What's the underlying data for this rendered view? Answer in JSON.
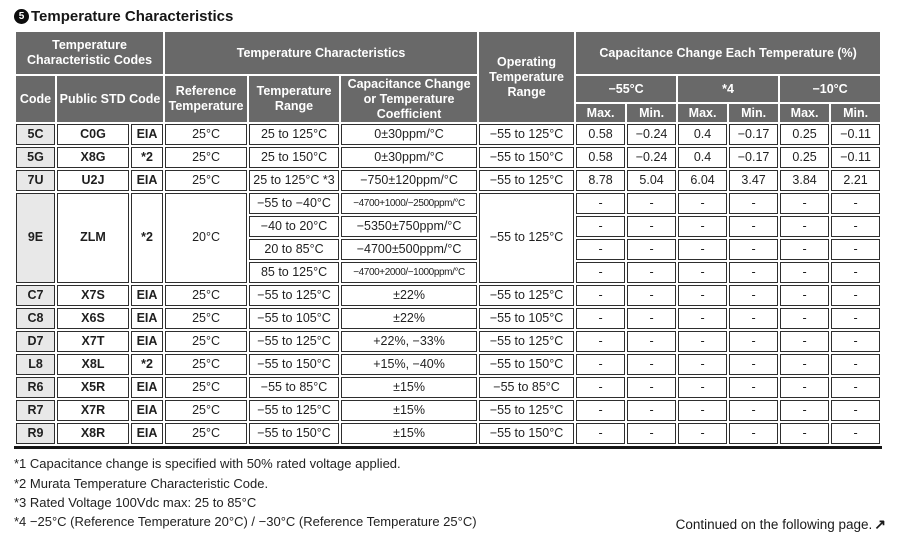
{
  "title": {
    "badge": "5",
    "text": "Temperature Characteristics"
  },
  "table": {
    "headers": {
      "temp_char_codes": "Temperature Characteristic Codes",
      "temp_characteristics": "Temperature Characteristics",
      "operating_temp_range": "Operating Temperature Range",
      "cap_change_each_temp": "Capacitance Change Each Temperature (%)",
      "code": "Code",
      "public_std_code": "Public STD Code",
      "reference_temperature": "Reference Temperature",
      "temperature_range": "Temperature Range",
      "cap_change_or_coeff": "Capacitance Change or Temperature Coefficient",
      "col_minus55": "−55°C",
      "col_star4": "*4",
      "col_minus10": "−10°C",
      "max": "Max.",
      "min": "Min."
    },
    "groups": [
      {
        "code": "5C",
        "std": "C0G",
        "org": "EIA",
        "ref": "25°C",
        "op": "−55 to 125°C",
        "subs": [
          {
            "range": "25 to 125°C",
            "coeff": "0±30ppm/°C",
            "vals": [
              "0.58",
              "−0.24",
              "0.4",
              "−0.17",
              "0.25",
              "−0.11"
            ]
          }
        ]
      },
      {
        "code": "5G",
        "std": "X8G",
        "org": "*2",
        "ref": "25°C",
        "op": "−55 to 150°C",
        "subs": [
          {
            "range": "25 to 150°C",
            "coeff": "0±30ppm/°C",
            "vals": [
              "0.58",
              "−0.24",
              "0.4",
              "−0.17",
              "0.25",
              "−0.11"
            ]
          }
        ]
      },
      {
        "code": "7U",
        "std": "U2J",
        "org": "EIA",
        "ref": "25°C",
        "op": "−55 to 125°C",
        "subs": [
          {
            "range": "25 to 125°C *3",
            "coeff": "−750±120ppm/°C",
            "vals": [
              "8.78",
              "5.04",
              "6.04",
              "3.47",
              "3.84",
              "2.21"
            ]
          }
        ]
      },
      {
        "code": "9E",
        "std": "ZLM",
        "org": "*2",
        "ref": "20°C",
        "op": "−55 to 125°C",
        "subs": [
          {
            "range": "−55 to −40°C",
            "coeff": "−4700+1000/−2500ppm/°C",
            "condensed": true,
            "vals": [
              "-",
              "-",
              "-",
              "-",
              "-",
              "-"
            ]
          },
          {
            "range": "−40 to 20°C",
            "coeff": "−5350±750ppm/°C",
            "vals": [
              "-",
              "-",
              "-",
              "-",
              "-",
              "-"
            ]
          },
          {
            "range": "20 to 85°C",
            "coeff": "−4700±500ppm/°C",
            "vals": [
              "-",
              "-",
              "-",
              "-",
              "-",
              "-"
            ]
          },
          {
            "range": "85 to 125°C",
            "coeff": "−4700+2000/−1000ppm/°C",
            "condensed": true,
            "vals": [
              "-",
              "-",
              "-",
              "-",
              "-",
              "-"
            ]
          }
        ]
      },
      {
        "code": "C7",
        "std": "X7S",
        "org": "EIA",
        "ref": "25°C",
        "op": "−55 to 125°C",
        "subs": [
          {
            "range": "−55 to 125°C",
            "coeff": "±22%",
            "vals": [
              "-",
              "-",
              "-",
              "-",
              "-",
              "-"
            ]
          }
        ]
      },
      {
        "code": "C8",
        "std": "X6S",
        "org": "EIA",
        "ref": "25°C",
        "op": "−55 to 105°C",
        "subs": [
          {
            "range": "−55 to 105°C",
            "coeff": "±22%",
            "vals": [
              "-",
              "-",
              "-",
              "-",
              "-",
              "-"
            ]
          }
        ]
      },
      {
        "code": "D7",
        "std": "X7T",
        "org": "EIA",
        "ref": "25°C",
        "op": "−55 to 125°C",
        "subs": [
          {
            "range": "−55 to 125°C",
            "coeff": "+22%, −33%",
            "vals": [
              "-",
              "-",
              "-",
              "-",
              "-",
              "-"
            ]
          }
        ]
      },
      {
        "code": "L8",
        "std": "X8L",
        "org": "*2",
        "ref": "25°C",
        "op": "−55 to 150°C",
        "subs": [
          {
            "range": "−55 to 150°C",
            "coeff": "+15%, −40%",
            "vals": [
              "-",
              "-",
              "-",
              "-",
              "-",
              "-"
            ]
          }
        ]
      },
      {
        "code": "R6",
        "std": "X5R",
        "org": "EIA",
        "ref": "25°C",
        "op": "−55 to 85°C",
        "subs": [
          {
            "range": "−55 to 85°C",
            "coeff": "±15%",
            "vals": [
              "-",
              "-",
              "-",
              "-",
              "-",
              "-"
            ]
          }
        ]
      },
      {
        "code": "R7",
        "std": "X7R",
        "org": "EIA",
        "ref": "25°C",
        "op": "−55 to 125°C",
        "subs": [
          {
            "range": "−55 to 125°C",
            "coeff": "±15%",
            "vals": [
              "-",
              "-",
              "-",
              "-",
              "-",
              "-"
            ]
          }
        ]
      },
      {
        "code": "R9",
        "std": "X8R",
        "org": "EIA",
        "ref": "25°C",
        "op": "−55 to 150°C",
        "subs": [
          {
            "range": "−55 to 150°C",
            "coeff": "±15%",
            "vals": [
              "-",
              "-",
              "-",
              "-",
              "-",
              "-"
            ]
          }
        ]
      }
    ]
  },
  "footnotes": [
    "*1 Capacitance change is specified with 50% rated voltage applied.",
    "*2 Murata Temperature Characteristic Code.",
    "*3 Rated Voltage 100Vdc max: 25 to 85°C",
    "*4 −25°C (Reference Temperature 20°C) / −30°C (Reference Temperature 25°C)"
  ],
  "continued": {
    "text": "Continued on the following page.",
    "arrow": "↗"
  },
  "colors": {
    "header_bg": "#696969",
    "code_cell_bg": "#e8e8e8",
    "border": "#2e2e2e",
    "text": "#1f1f1f"
  }
}
